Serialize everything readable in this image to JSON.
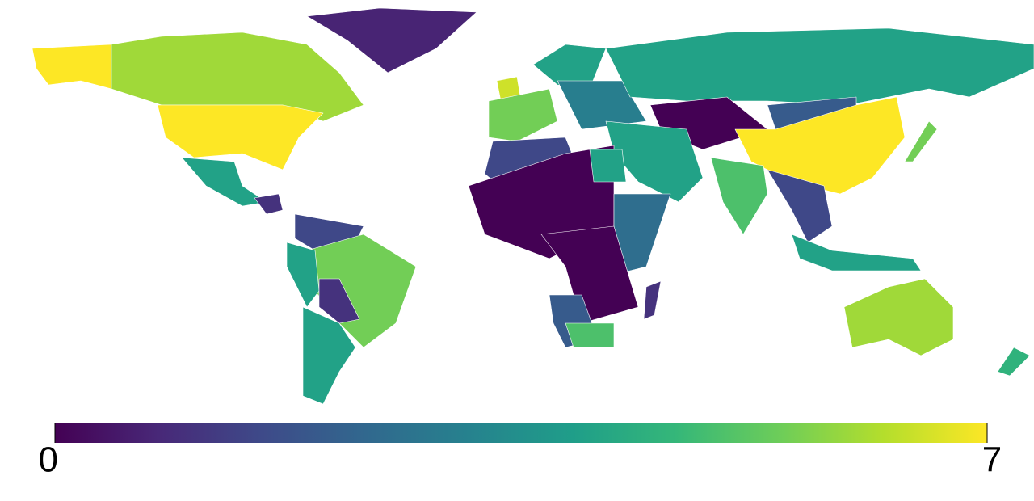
{
  "chart_data": {
    "type": "choropleth",
    "colormap": "viridis",
    "zlim": [
      0,
      7
    ],
    "zticks": [
      0,
      7
    ],
    "values": [
      7,
      6,
      0.7,
      7,
      4,
      1,
      1.5,
      5.5,
      4,
      1,
      4,
      6.5,
      5.5,
      4,
      3,
      4,
      0,
      2,
      7,
      5.5,
      4,
      5,
      1.5,
      4,
      1.5,
      0,
      4,
      2.5,
      0,
      2,
      5,
      1,
      6,
      4.5
    ]
  }
}
